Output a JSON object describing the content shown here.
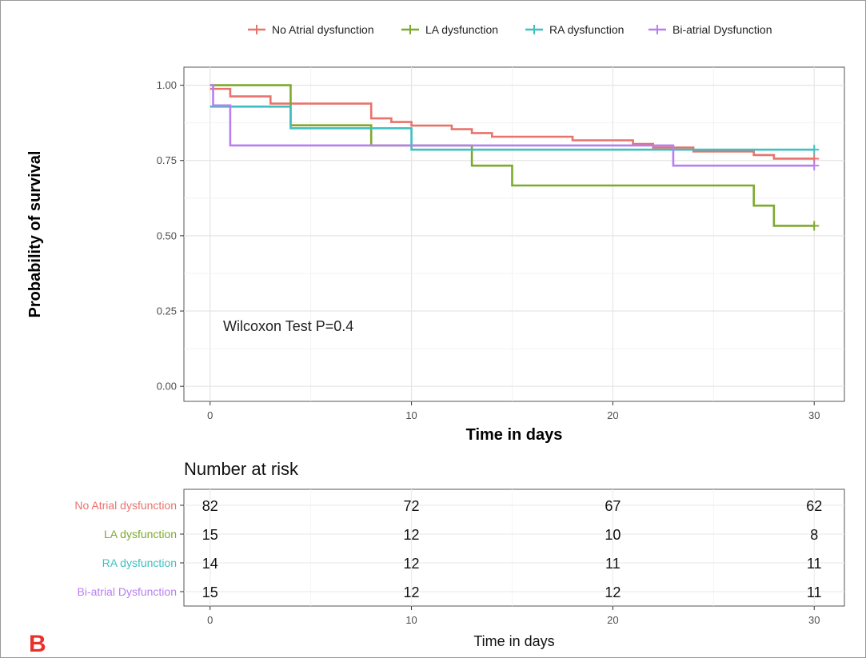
{
  "chart_data": {
    "type": "line",
    "subtype": "kaplan-meier",
    "xlabel": "Time in days",
    "ylabel": "Probability of survival",
    "xlim": [
      -1.3,
      31.5
    ],
    "ylim": [
      -0.05,
      1.06
    ],
    "x_ticks": [
      0,
      10,
      20,
      30
    ],
    "y_ticks": [
      0.0,
      0.25,
      0.5,
      0.75,
      1.0
    ],
    "y_tick_labels": [
      "0.00",
      "0.25",
      "0.50",
      "0.75",
      "1.00"
    ],
    "grid": true,
    "legend_position": "top",
    "annotation": "Wilcoxon Test P=0.4",
    "series": [
      {
        "name": "No Atrial dysfunction",
        "color": "#e8736c",
        "steps": [
          [
            0,
            0.988
          ],
          [
            1,
            0.963
          ],
          [
            3,
            0.939
          ],
          [
            8,
            0.89
          ],
          [
            9,
            0.878
          ],
          [
            10,
            0.866
          ],
          [
            12,
            0.854
          ],
          [
            13,
            0.841
          ],
          [
            14,
            0.829
          ],
          [
            18,
            0.817
          ],
          [
            21,
            0.805
          ],
          [
            22,
            0.793
          ],
          [
            24,
            0.78
          ],
          [
            27,
            0.768
          ],
          [
            28,
            0.756
          ],
          [
            30,
            0.756
          ]
        ],
        "censor": [
          30
        ]
      },
      {
        "name": "LA dysfunction",
        "color": "#7caa2d",
        "steps": [
          [
            0,
            1.0
          ],
          [
            4,
            0.867
          ],
          [
            8,
            0.8
          ],
          [
            13,
            0.733
          ],
          [
            15,
            0.667
          ],
          [
            27,
            0.6
          ],
          [
            28,
            0.533
          ],
          [
            30,
            0.533
          ]
        ],
        "censor": [
          30
        ]
      },
      {
        "name": "RA dysfunction",
        "color": "#3fbfbf",
        "steps": [
          [
            0,
            0.929
          ],
          [
            4,
            0.857
          ],
          [
            10,
            0.786
          ],
          [
            30,
            0.786
          ]
        ],
        "censor": [
          30
        ]
      },
      {
        "name": "Bi-atrial Dysfunction",
        "color": "#b77ff0",
        "steps": [
          [
            0,
            1.0
          ],
          [
            0.15,
            0.933
          ],
          [
            1,
            0.8
          ],
          [
            23,
            0.733
          ],
          [
            30,
            0.733
          ]
        ],
        "censor": [
          30
        ]
      }
    ]
  },
  "risk_table": {
    "title": "Number at risk",
    "xlabel": "Time in days",
    "times": [
      0,
      10,
      20,
      30
    ],
    "rows": [
      {
        "group": "No Atrial dysfunction",
        "color": "#e8736c",
        "counts": [
          "82",
          "72",
          "67",
          "62"
        ]
      },
      {
        "group": "LA dysfunction",
        "color": "#7caa2d",
        "counts": [
          "15",
          "12",
          "10",
          "8"
        ]
      },
      {
        "group": "RA dysfunction",
        "color": "#3fbfbf",
        "counts": [
          "14",
          "12",
          "11",
          "11"
        ]
      },
      {
        "group": "Bi-atrial Dysfunction",
        "color": "#b77ff0",
        "counts": [
          "15",
          "12",
          "12",
          "11"
        ]
      }
    ]
  },
  "panel_letter": "B"
}
